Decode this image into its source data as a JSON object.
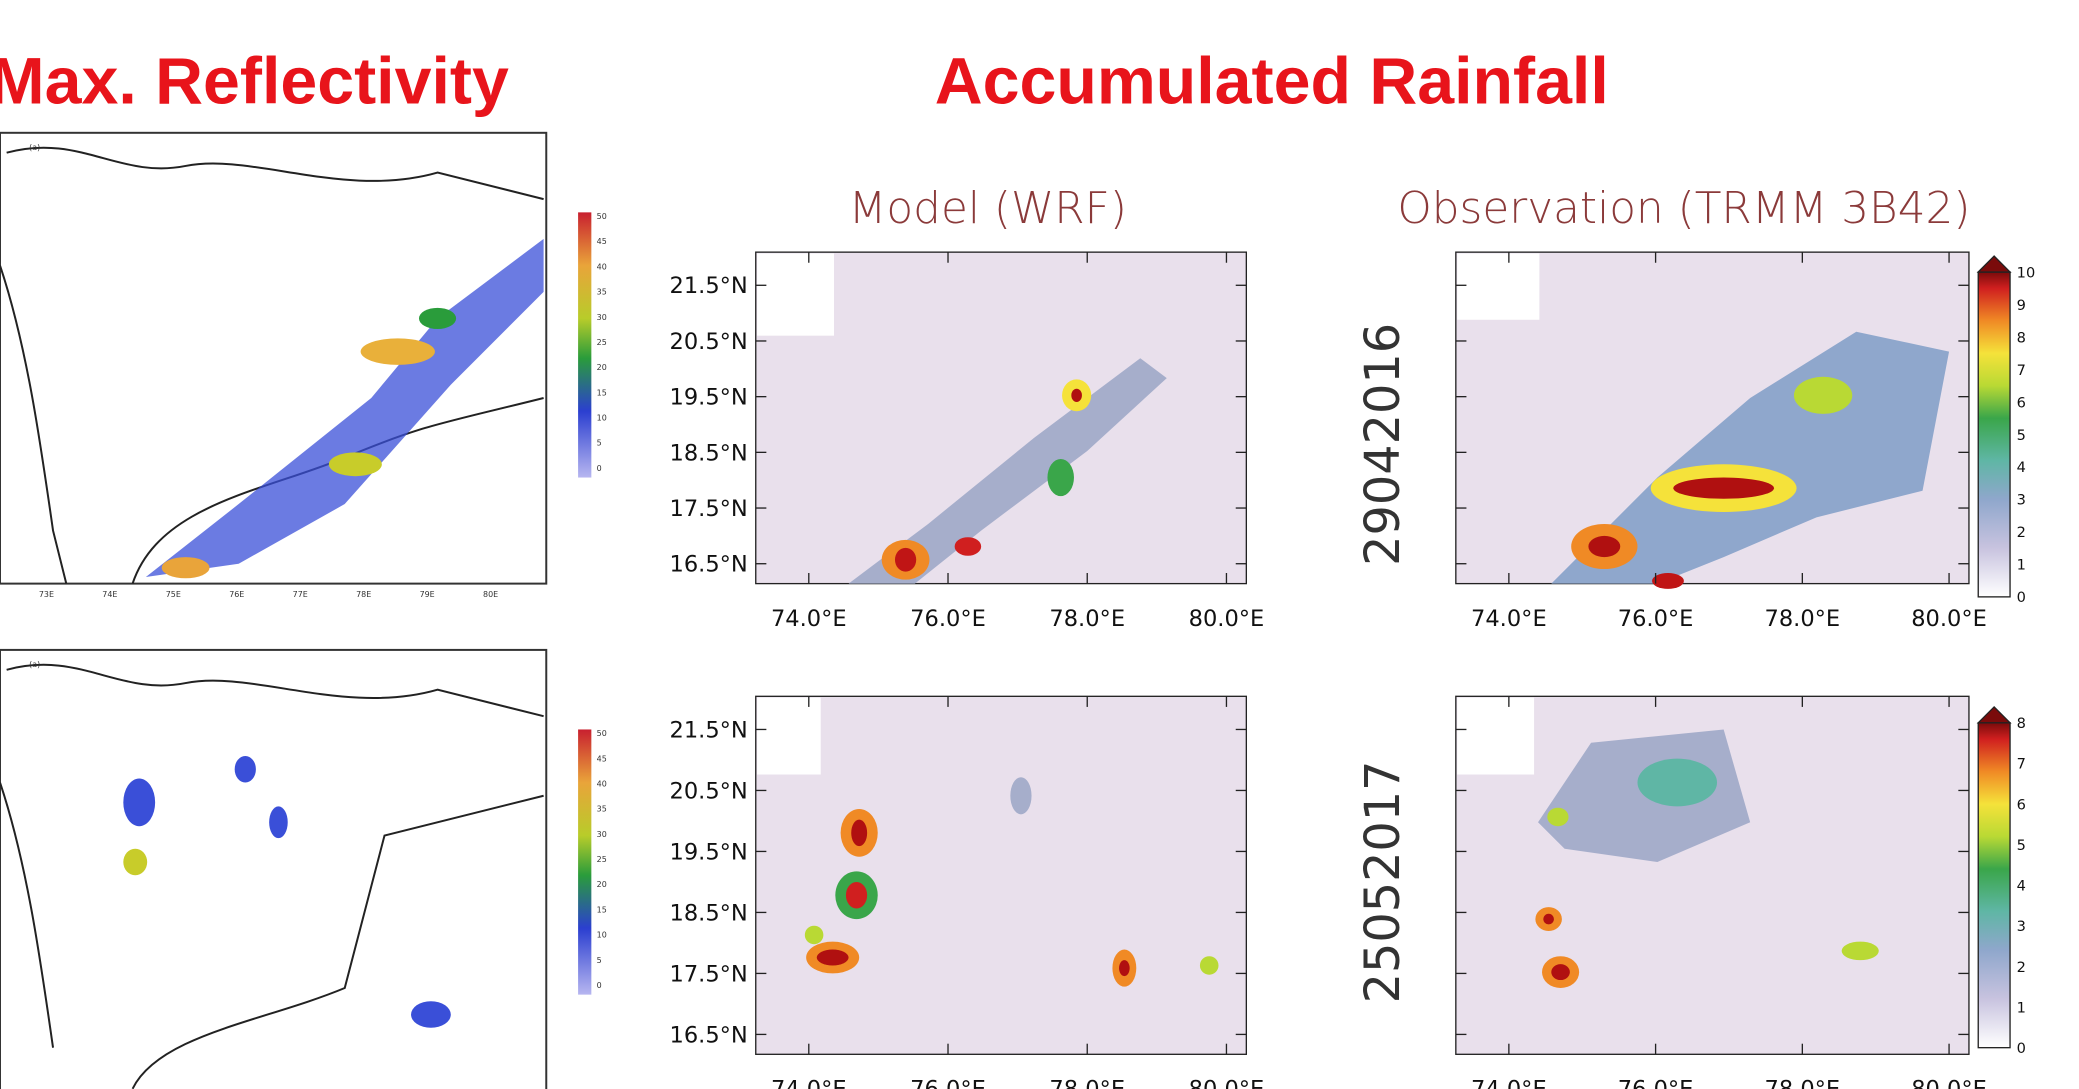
{
  "headings": [
    "Max. Reflectivity",
    "Accumulated Rainfall"
  ],
  "panel_titles": [
    "Model (WRF)",
    "Observation (TRMM 3B42)"
  ],
  "dates": [
    "29042016",
    "25052017"
  ],
  "panel_letters": [
    "(a)",
    "(a)"
  ],
  "lat_labels": [
    "21.5°N",
    "20.5°N",
    "19.5°N",
    "18.5°N",
    "17.5°N",
    "16.5°N"
  ],
  "lon_labels": [
    "74.0°E",
    "76.0°E",
    "78.0°E",
    "80.0°E"
  ],
  "colorbar_top_labels": [
    "10",
    "9",
    "8",
    "7",
    "6",
    "5",
    "4",
    "3",
    "2",
    "1",
    "0"
  ],
  "colorbar_bottom_labels": [
    "8",
    "7",
    "6",
    "5",
    "4",
    "3",
    "2",
    "1",
    "0"
  ],
  "reflectivity_scale_labels": [
    "50",
    "45",
    "40",
    "35",
    "30",
    "25",
    "20",
    "15",
    "10",
    "5",
    "0"
  ],
  "reflectivity_lon_labels": [
    "73E",
    "74E",
    "75E",
    "76E",
    "77E",
    "78E",
    "79E",
    "80E"
  ]
}
